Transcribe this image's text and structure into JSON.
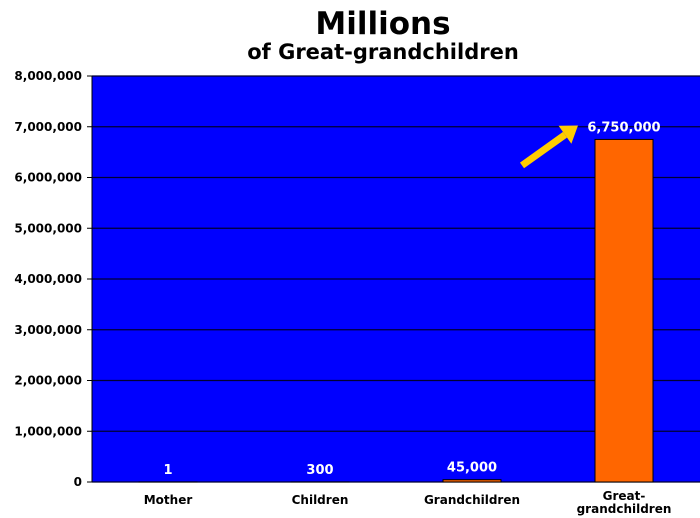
{
  "chart_data": {
    "type": "bar",
    "title": "Millions",
    "subtitle": "of Great-grandchildren",
    "categories": [
      "Mother",
      "Children",
      "Grandchildren",
      "Great-\ngrandchildren"
    ],
    "values": [
      1,
      300,
      45000,
      6750000
    ],
    "data_labels": [
      "1",
      "300",
      "45,000",
      "6,750,000"
    ],
    "y_ticks": [
      "0",
      "1,000,000",
      "2,000,000",
      "3,000,000",
      "4,000,000",
      "5,000,000",
      "6,000,000",
      "7,000,000",
      "8,000,000"
    ],
    "ylim": [
      0,
      8000000
    ],
    "grid": true,
    "legend": "none",
    "annotation": "arrow pointing to 6,750,000",
    "colors": {
      "plot_background": "#0000FF",
      "bar": "#FF6600",
      "gridline": "#000033",
      "arrow": "#FFCC00",
      "data_label": "#FFFFFF"
    }
  }
}
